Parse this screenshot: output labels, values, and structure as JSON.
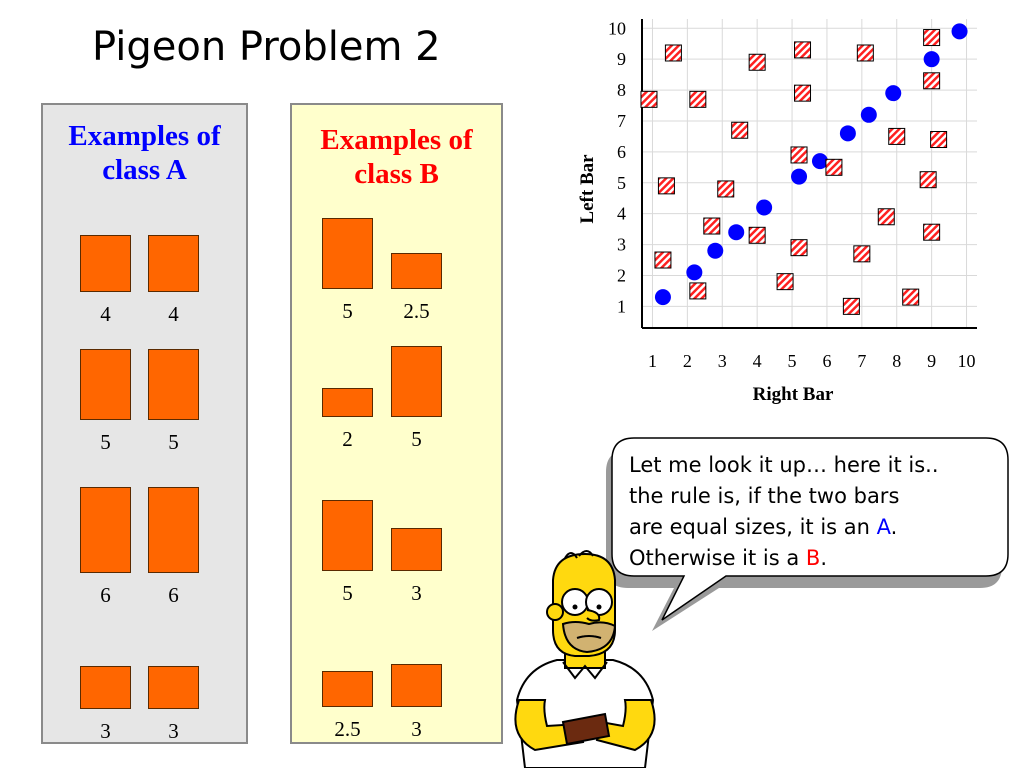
{
  "title": "Pigeon Problem 2",
  "panel_a": {
    "title_line1": "Examples of",
    "title_line2": "class A",
    "title_color": "#0000ff",
    "bg": "#e6e6e6",
    "examples": [
      {
        "left": 4,
        "right": 4,
        "left_label": "4",
        "right_label": "4"
      },
      {
        "left": 5,
        "right": 5,
        "left_label": "5",
        "right_label": "5"
      },
      {
        "left": 6,
        "right": 6,
        "left_label": "6",
        "right_label": "6"
      },
      {
        "left": 3,
        "right": 3,
        "left_label": "3",
        "right_label": "3"
      }
    ]
  },
  "panel_b": {
    "title_line1": "Examples of",
    "title_line2": "class B",
    "title_color": "#ff0000",
    "bg": "#ffffcc",
    "examples": [
      {
        "left": 5,
        "right": 2.5,
        "left_label": "5",
        "right_label": "2.5"
      },
      {
        "left": 2,
        "right": 5,
        "left_label": "2",
        "right_label": "5"
      },
      {
        "left": 5,
        "right": 3,
        "left_label": "5",
        "right_label": "3"
      },
      {
        "left": 2.5,
        "right": 3,
        "left_label": "2.5",
        "right_label": "3"
      }
    ]
  },
  "bar_color": "#ff6600",
  "speech": {
    "line1": "Let me look it up… here it is..",
    "line2": "the rule is, if the two bars",
    "line3_pre": "are equal sizes, it is an ",
    "line3_class": "A",
    "line3_post": ".",
    "line4_pre": "Otherwise it is a ",
    "line4_class": "B",
    "line4_post": "."
  },
  "chart_data": {
    "type": "scatter",
    "xlabel": "Right Bar",
    "ylabel": "Left Bar",
    "xlim": [
      0.7,
      10.3
    ],
    "ylim": [
      0.3,
      10.3
    ],
    "xticks": [
      "1",
      "2",
      "3",
      "4",
      "5",
      "6",
      "7",
      "8",
      "9",
      "10"
    ],
    "yticks": [
      "1",
      "2",
      "3",
      "4",
      "5",
      "6",
      "7",
      "8",
      "9",
      "10"
    ],
    "grid": true,
    "series": [
      {
        "marker": "circle",
        "color": "#0000ff",
        "points": [
          [
            1.3,
            1.3
          ],
          [
            2.2,
            2.1
          ],
          [
            2.8,
            2.8
          ],
          [
            3.4,
            3.4
          ],
          [
            4.2,
            4.2
          ],
          [
            5.2,
            5.2
          ],
          [
            5.8,
            5.7
          ],
          [
            6.6,
            6.6
          ],
          [
            7.2,
            7.2
          ],
          [
            7.9,
            7.9
          ],
          [
            9.0,
            9.0
          ],
          [
            9.8,
            9.9
          ]
        ]
      },
      {
        "marker": "hatched-square",
        "color": "#ff0000",
        "points": [
          [
            1.4,
            4.9
          ],
          [
            1.6,
            9.2
          ],
          [
            1.3,
            2.5
          ],
          [
            0.9,
            7.7
          ],
          [
            2.3,
            7.7
          ],
          [
            2.3,
            1.5
          ],
          [
            2.7,
            3.6
          ],
          [
            3.1,
            4.8
          ],
          [
            3.5,
            6.7
          ],
          [
            4.0,
            3.3
          ],
          [
            4.0,
            8.9
          ],
          [
            4.8,
            1.8
          ],
          [
            5.2,
            2.9
          ],
          [
            5.2,
            5.9
          ],
          [
            5.3,
            9.3
          ],
          [
            5.3,
            7.9
          ],
          [
            6.2,
            5.5
          ],
          [
            6.7,
            1.0
          ],
          [
            7.0,
            2.7
          ],
          [
            7.1,
            9.2
          ],
          [
            7.7,
            3.9
          ],
          [
            8.0,
            6.5
          ],
          [
            8.4,
            1.3
          ],
          [
            8.9,
            5.1
          ],
          [
            9.0,
            9.7
          ],
          [
            9.0,
            8.3
          ],
          [
            9.0,
            3.4
          ],
          [
            9.2,
            6.4
          ]
        ]
      }
    ]
  }
}
